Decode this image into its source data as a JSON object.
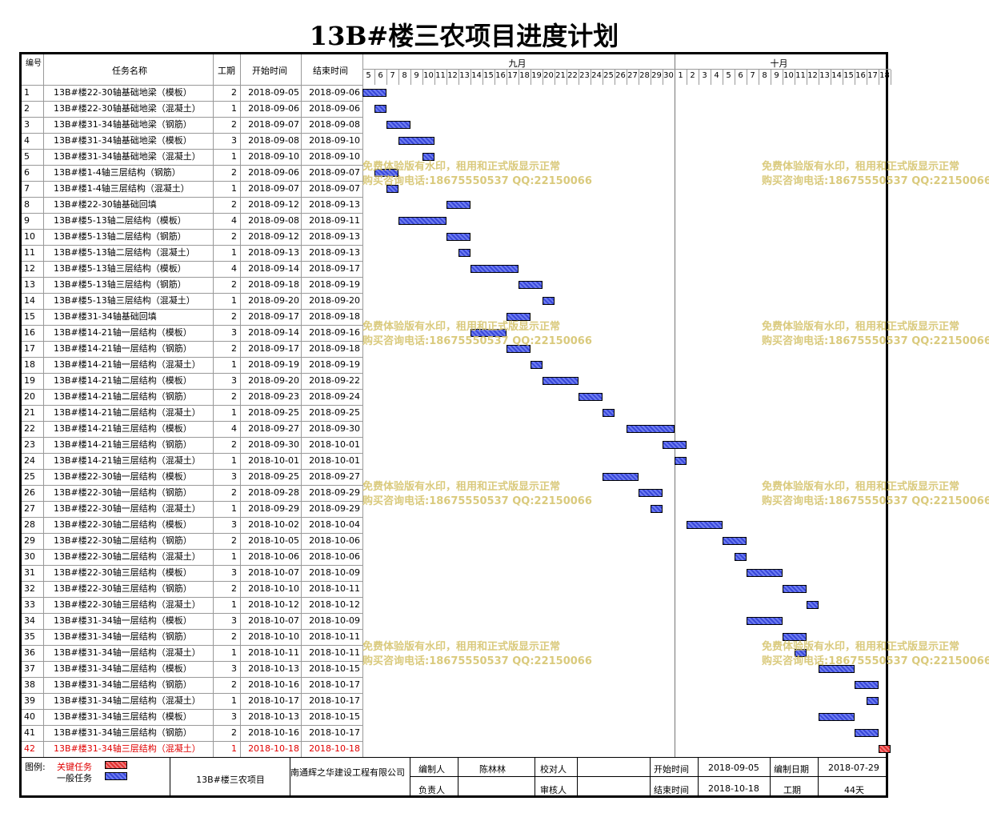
{
  "title": "13B#楼三农项目进度计划",
  "headers": {
    "no": "编号",
    "name": "任务名称",
    "dur": "工期",
    "start": "开始时间",
    "end": "结束时间"
  },
  "months": [
    "九月",
    "十月"
  ],
  "days": [
    "5",
    "6",
    "7",
    "8",
    "9",
    "10",
    "11",
    "12",
    "13",
    "14",
    "15",
    "16",
    "17",
    "18",
    "19",
    "20",
    "21",
    "22",
    "23",
    "24",
    "25",
    "26",
    "27",
    "28",
    "29",
    "30",
    "1",
    "2",
    "3",
    "4",
    "5",
    "6",
    "7",
    "8",
    "9",
    "10",
    "11",
    "12",
    "13",
    "14",
    "15",
    "16",
    "17",
    "18"
  ],
  "tasks": [
    {
      "no": "1",
      "name": "13B#楼22-30轴基础地梁（模板）",
      "dur": "2",
      "start": "2018-09-05",
      "end": "2018-09-06"
    },
    {
      "no": "2",
      "name": "13B#楼22-30轴基础地梁（混凝土）",
      "dur": "1",
      "start": "2018-09-06",
      "end": "2018-09-06"
    },
    {
      "no": "3",
      "name": "13B#楼31-34轴基础地梁（钢筋）",
      "dur": "2",
      "start": "2018-09-07",
      "end": "2018-09-08"
    },
    {
      "no": "4",
      "name": "13B#楼31-34轴基础地梁（模板）",
      "dur": "3",
      "start": "2018-09-08",
      "end": "2018-09-10"
    },
    {
      "no": "5",
      "name": "13B#楼31-34轴基础地梁（混凝土）",
      "dur": "1",
      "start": "2018-09-10",
      "end": "2018-09-10"
    },
    {
      "no": "6",
      "name": "13B#楼1-4轴三层结构（钢筋）",
      "dur": "2",
      "start": "2018-09-06",
      "end": "2018-09-07"
    },
    {
      "no": "7",
      "name": "13B#楼1-4轴三层结构（混凝土）",
      "dur": "1",
      "start": "2018-09-07",
      "end": "2018-09-07"
    },
    {
      "no": "8",
      "name": "13B#楼22-30轴基础回填",
      "dur": "2",
      "start": "2018-09-12",
      "end": "2018-09-13"
    },
    {
      "no": "9",
      "name": "13B#楼5-13轴二层结构（模板）",
      "dur": "4",
      "start": "2018-09-08",
      "end": "2018-09-11"
    },
    {
      "no": "10",
      "name": "13B#楼5-13轴二层结构（钢筋）",
      "dur": "2",
      "start": "2018-09-12",
      "end": "2018-09-13"
    },
    {
      "no": "11",
      "name": "13B#楼5-13轴二层结构（混凝土）",
      "dur": "1",
      "start": "2018-09-13",
      "end": "2018-09-13"
    },
    {
      "no": "12",
      "name": "13B#楼5-13轴三层结构（模板）",
      "dur": "4",
      "start": "2018-09-14",
      "end": "2018-09-17"
    },
    {
      "no": "13",
      "name": "13B#楼5-13轴三层结构（钢筋）",
      "dur": "2",
      "start": "2018-09-18",
      "end": "2018-09-19"
    },
    {
      "no": "14",
      "name": "13B#楼5-13轴三层结构（混凝土）",
      "dur": "1",
      "start": "2018-09-20",
      "end": "2018-09-20"
    },
    {
      "no": "15",
      "name": "13B#楼31-34轴基础回填",
      "dur": "2",
      "start": "2018-09-17",
      "end": "2018-09-18"
    },
    {
      "no": "16",
      "name": "13B#楼14-21轴一层结构（模板）",
      "dur": "3",
      "start": "2018-09-14",
      "end": "2018-09-16"
    },
    {
      "no": "17",
      "name": "13B#楼14-21轴一层结构（钢筋）",
      "dur": "2",
      "start": "2018-09-17",
      "end": "2018-09-18"
    },
    {
      "no": "18",
      "name": "13B#楼14-21轴一层结构（混凝土）",
      "dur": "1",
      "start": "2018-09-19",
      "end": "2018-09-19"
    },
    {
      "no": "19",
      "name": "13B#楼14-21轴二层结构（模板）",
      "dur": "3",
      "start": "2018-09-20",
      "end": "2018-09-22"
    },
    {
      "no": "20",
      "name": "13B#楼14-21轴二层结构（钢筋）",
      "dur": "2",
      "start": "2018-09-23",
      "end": "2018-09-24"
    },
    {
      "no": "21",
      "name": "13B#楼14-21轴二层结构（混凝土）",
      "dur": "1",
      "start": "2018-09-25",
      "end": "2018-09-25"
    },
    {
      "no": "22",
      "name": "13B#楼14-21轴三层结构（模板）",
      "dur": "4",
      "start": "2018-09-27",
      "end": "2018-09-30"
    },
    {
      "no": "23",
      "name": "13B#楼14-21轴三层结构（钢筋）",
      "dur": "2",
      "start": "2018-09-30",
      "end": "2018-10-01"
    },
    {
      "no": "24",
      "name": "13B#楼14-21轴三层结构（混凝土）",
      "dur": "1",
      "start": "2018-10-01",
      "end": "2018-10-01"
    },
    {
      "no": "25",
      "name": "13B#楼22-30轴一层结构（模板）",
      "dur": "3",
      "start": "2018-09-25",
      "end": "2018-09-27"
    },
    {
      "no": "26",
      "name": "13B#楼22-30轴一层结构（钢筋）",
      "dur": "2",
      "start": "2018-09-28",
      "end": "2018-09-29"
    },
    {
      "no": "27",
      "name": "13B#楼22-30轴一层结构（混凝土）",
      "dur": "1",
      "start": "2018-09-29",
      "end": "2018-09-29"
    },
    {
      "no": "28",
      "name": "13B#楼22-30轴二层结构（模板）",
      "dur": "3",
      "start": "2018-10-02",
      "end": "2018-10-04"
    },
    {
      "no": "29",
      "name": "13B#楼22-30轴二层结构（钢筋）",
      "dur": "2",
      "start": "2018-10-05",
      "end": "2018-10-06"
    },
    {
      "no": "30",
      "name": "13B#楼22-30轴二层结构（混凝土）",
      "dur": "1",
      "start": "2018-10-06",
      "end": "2018-10-06"
    },
    {
      "no": "31",
      "name": "13B#楼22-30轴三层结构（模板）",
      "dur": "3",
      "start": "2018-10-07",
      "end": "2018-10-09"
    },
    {
      "no": "32",
      "name": "13B#楼22-30轴三层结构（钢筋）",
      "dur": "2",
      "start": "2018-10-10",
      "end": "2018-10-11"
    },
    {
      "no": "33",
      "name": "13B#楼22-30轴三层结构（混凝土）",
      "dur": "1",
      "start": "2018-10-12",
      "end": "2018-10-12"
    },
    {
      "no": "34",
      "name": "13B#楼31-34轴一层结构（模板）",
      "dur": "3",
      "start": "2018-10-07",
      "end": "2018-10-09"
    },
    {
      "no": "35",
      "name": "13B#楼31-34轴一层结构（钢筋）",
      "dur": "2",
      "start": "2018-10-10",
      "end": "2018-10-11"
    },
    {
      "no": "36",
      "name": "13B#楼31-34轴一层结构（混凝土）",
      "dur": "1",
      "start": "2018-10-11",
      "end": "2018-10-11"
    },
    {
      "no": "37",
      "name": "13B#楼31-34轴二层结构（模板）",
      "dur": "3",
      "start": "2018-10-13",
      "end": "2018-10-15"
    },
    {
      "no": "38",
      "name": "13B#楼31-34轴二层结构（钢筋）",
      "dur": "2",
      "start": "2018-10-16",
      "end": "2018-10-17"
    },
    {
      "no": "39",
      "name": "13B#楼31-34轴二层结构（混凝土）",
      "dur": "1",
      "start": "2018-10-17",
      "end": "2018-10-17"
    },
    {
      "no": "40",
      "name": "13B#楼31-34轴三层结构（模板）",
      "dur": "3",
      "start": "2018-10-13",
      "end": "2018-10-15"
    },
    {
      "no": "41",
      "name": "13B#楼31-34轴三层结构（钢筋）",
      "dur": "2",
      "start": "2018-10-16",
      "end": "2018-10-17"
    },
    {
      "no": "42",
      "name": "13B#楼31-34轴三层结构（混凝土）",
      "dur": "1",
      "start": "2018-10-18",
      "end": "2018-10-18",
      "critical": true
    }
  ],
  "legend": {
    "label": "图例:",
    "critical": "关键任务",
    "normal": "一般任务"
  },
  "footer": {
    "project": "13B#楼三农项目",
    "company": "南通辉之华建设工程有限公司",
    "compiler_label": "编制人",
    "compiler": "陈林林",
    "checker_label": "校对人",
    "checker": "",
    "manager_label": "负责人",
    "manager": "",
    "reviewer_label": "审核人",
    "reviewer": "",
    "start_label": "开始时间",
    "start": "2018-09-05",
    "end_label": "结束时间",
    "end": "2018-10-18",
    "date_label": "编制日期",
    "date": "2018-07-29",
    "dur_label": "工期",
    "dur": "44天"
  },
  "watermark": {
    "line1": "免费体验版有水印，租用和正式版显示正常",
    "line2": "购买咨询电话:18675550537 QQ:22150066"
  },
  "colors": {
    "normal_bar": "#3a48d9",
    "critical_bar": "#e03030",
    "critical_text": "#e00000",
    "watermark": "#d6c56f"
  }
}
